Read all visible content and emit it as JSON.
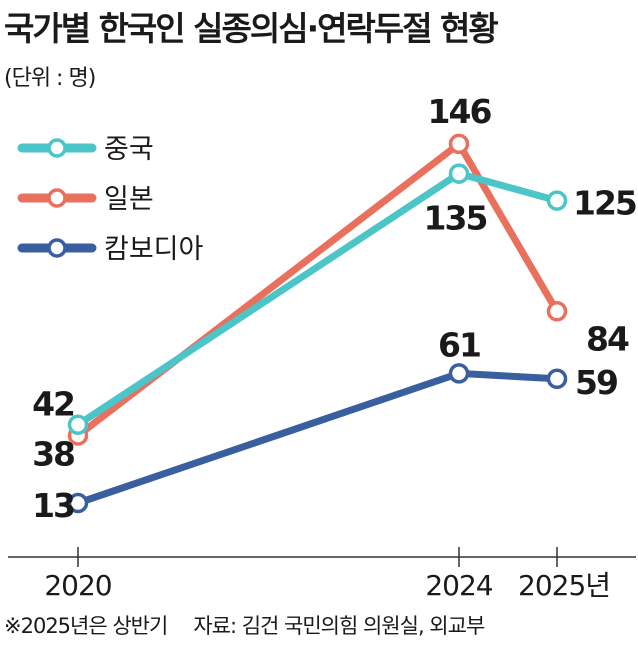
{
  "chart_data": {
    "type": "line",
    "title": "국가별 한국인 실종의심·연락두절 현황",
    "unit_label": "(단위 : 명)",
    "x": [
      "2020",
      "2024",
      "2025년"
    ],
    "categories": [
      "2020",
      "2024",
      "2025년"
    ],
    "series": [
      {
        "name": "중국",
        "values": [
          42,
          135,
          125
        ],
        "color": "#4cc5c8"
      },
      {
        "name": "일본",
        "values": [
          38,
          146,
          84
        ],
        "color": "#e8705c"
      },
      {
        "name": "캄보디아",
        "values": [
          13,
          61,
          59
        ],
        "color": "#3a5f9e"
      }
    ],
    "ylim": [
      0,
      160
    ],
    "xlabel": "",
    "ylabel": "",
    "grid": false,
    "legend": "top-left",
    "footnote": "※2025년은 상반기",
    "source": "자료: 김건 국민의힘 의원실, 외교부"
  }
}
